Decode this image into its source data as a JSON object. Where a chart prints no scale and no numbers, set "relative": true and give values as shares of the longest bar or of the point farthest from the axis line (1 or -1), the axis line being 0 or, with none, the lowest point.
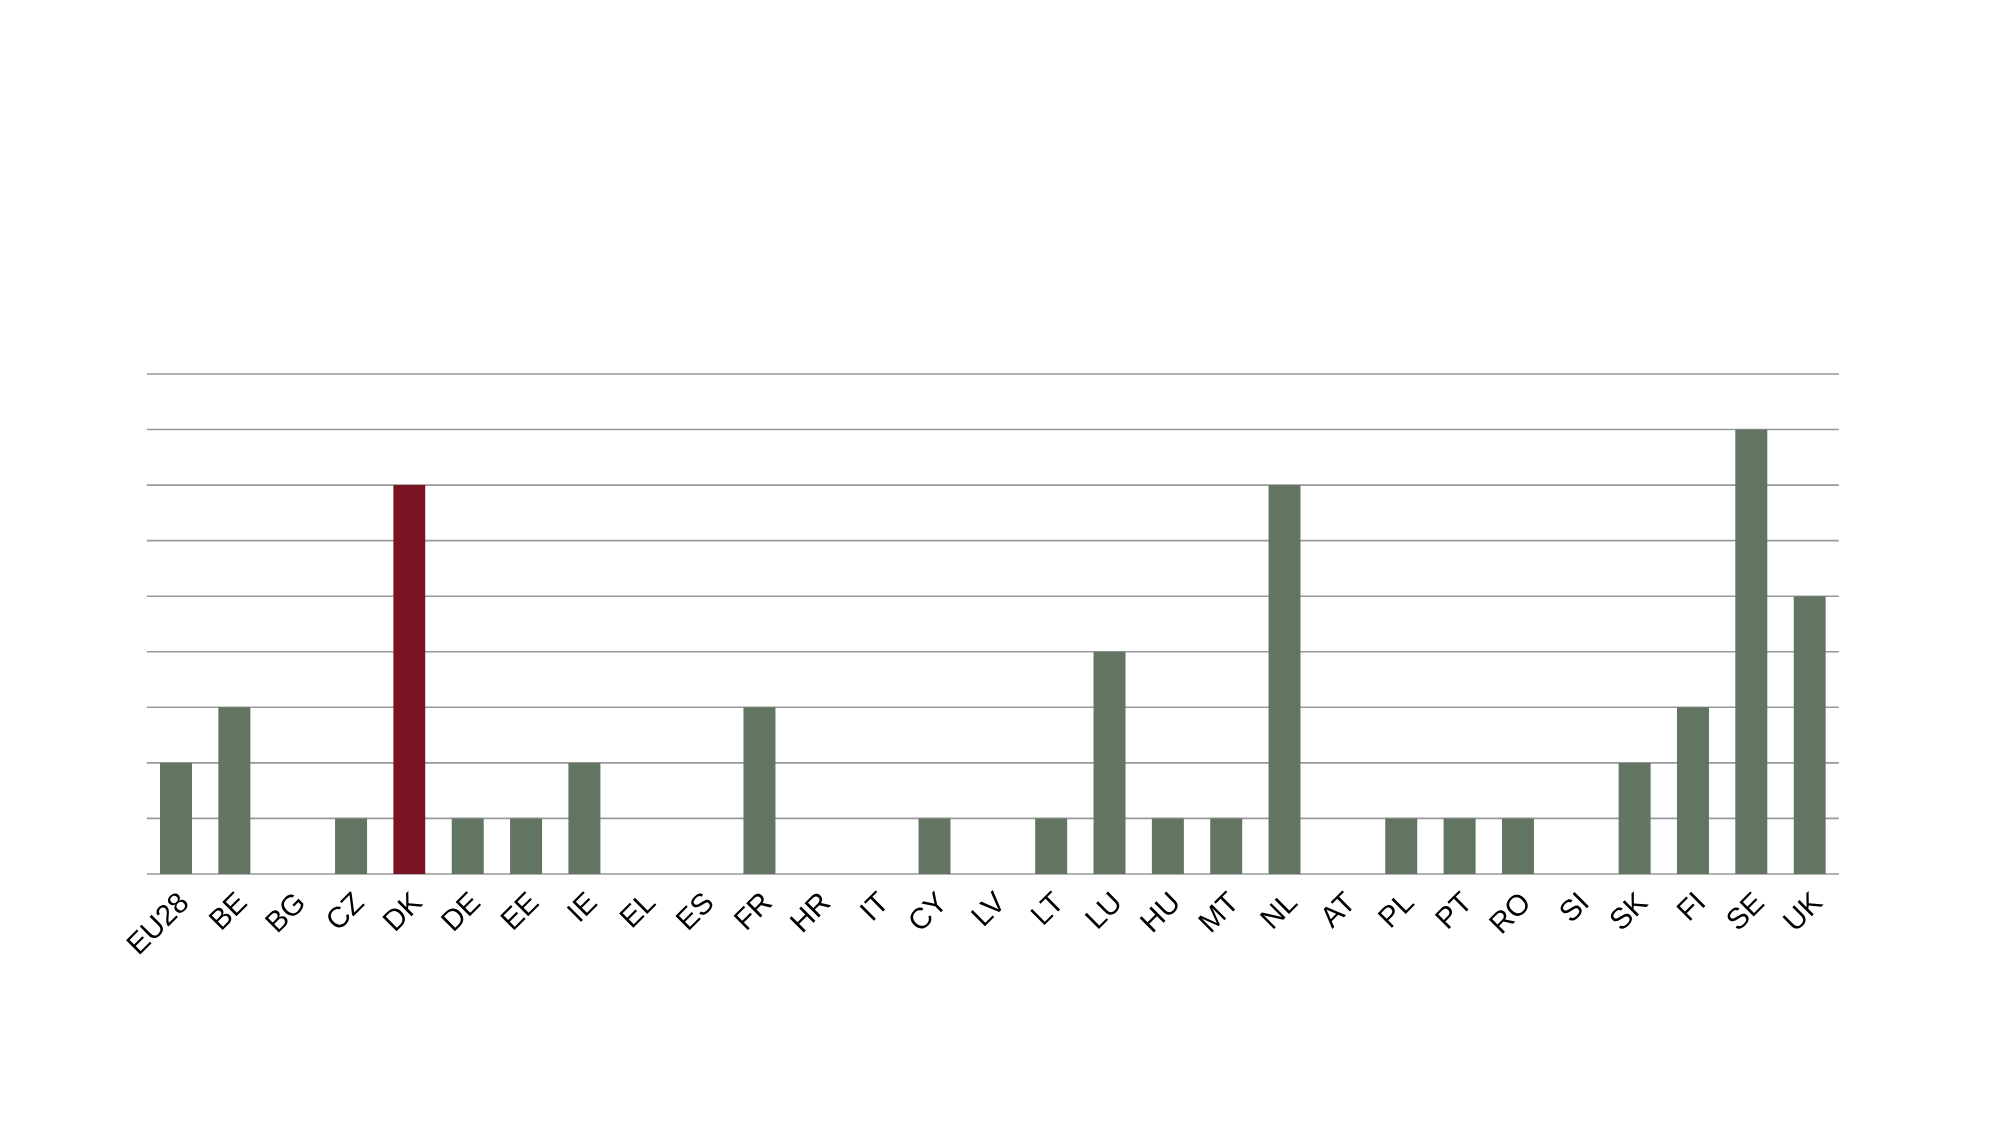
{
  "chart_data": {
    "type": "bar",
    "relative": true,
    "grid": "y",
    "categories": [
      "EU28",
      "BE",
      "BG",
      "CZ",
      "DK",
      "DE",
      "EE",
      "IE",
      "EL",
      "ES",
      "FR",
      "HR",
      "IT",
      "CY",
      "LV",
      "LT",
      "LU",
      "HU",
      "MT",
      "NL",
      "AT",
      "PL",
      "PT",
      "RO",
      "SI",
      "SK",
      "FI",
      "SE",
      "UK"
    ],
    "values": [
      0.25,
      0.375,
      0,
      0.125,
      0.875,
      0.125,
      0.125,
      0.25,
      0,
      0,
      0.375,
      0,
      0,
      0.125,
      0,
      0.125,
      0.5,
      0.125,
      0.125,
      0.875,
      0,
      0.125,
      0.125,
      0.125,
      0,
      0.25,
      0.375,
      1,
      0.625
    ],
    "colors": [
      "#627562",
      "#627562",
      "#627562",
      "#627562",
      "#7a1424",
      "#627562",
      "#627562",
      "#627562",
      "#627562",
      "#627562",
      "#627562",
      "#627562",
      "#627562",
      "#627562",
      "#627562",
      "#627562",
      "#627562",
      "#627562",
      "#627562",
      "#627562",
      "#627562",
      "#627562",
      "#627562",
      "#627562",
      "#627562",
      "#627562",
      "#627562",
      "#627562",
      "#627562"
    ]
  }
}
